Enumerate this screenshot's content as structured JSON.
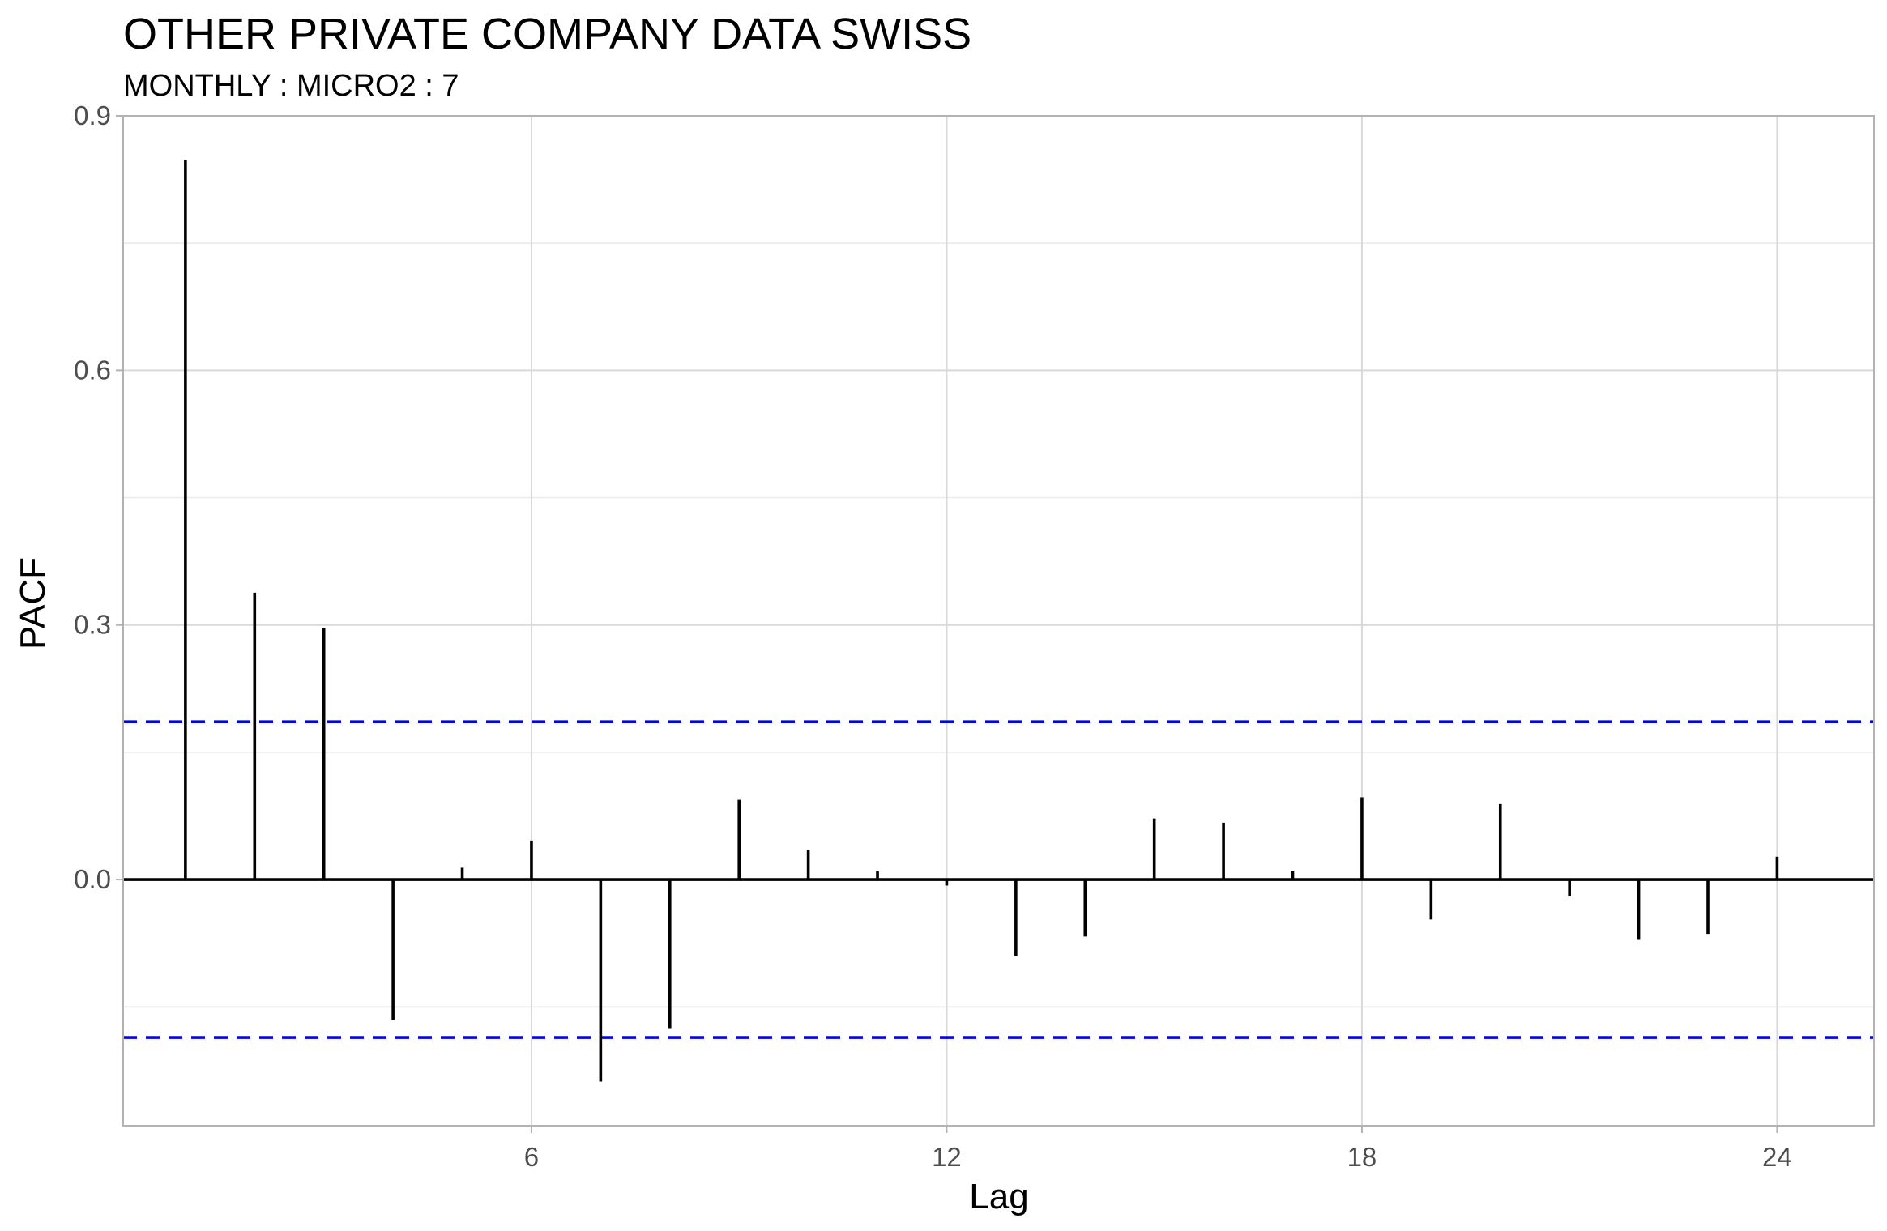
{
  "chart_data": {
    "type": "bar",
    "title": "OTHER PRIVATE COMPANY DATA SWISS",
    "subtitle": "MONTHLY : MICRO2 : 7",
    "xlabel": "Lag",
    "ylabel": "PACF",
    "xlim": [
      0.1,
      25.4
    ],
    "ylim": [
      -0.29,
      0.9
    ],
    "x_ticks": [
      6,
      12,
      18,
      24
    ],
    "y_ticks": [
      0.0,
      0.3,
      0.6,
      0.9
    ],
    "y_tick_labels": [
      "0.0",
      "0.3",
      "0.6",
      "0.9"
    ],
    "grid": true,
    "lags": [
      1,
      2,
      3,
      4,
      5,
      6,
      7,
      8,
      9,
      10,
      11,
      12,
      13,
      14,
      15,
      16,
      17,
      18,
      19,
      20,
      21,
      22,
      23,
      24
    ],
    "values": [
      0.848,
      0.338,
      0.296,
      -0.165,
      0.014,
      0.046,
      -0.238,
      -0.175,
      0.094,
      0.035,
      0.01,
      -0.007,
      -0.09,
      -0.067,
      0.072,
      0.067,
      0.01,
      0.097,
      -0.047,
      0.089,
      -0.019,
      -0.071,
      -0.064,
      0.027
    ],
    "confidence_bound": 0.186,
    "colors": {
      "bars": "#000000",
      "confidence_lines": "#0000ff",
      "grid_major": "#d9d9d9",
      "grid_minor": "#ebebeb",
      "panel_border": "#b3b3b3"
    }
  }
}
